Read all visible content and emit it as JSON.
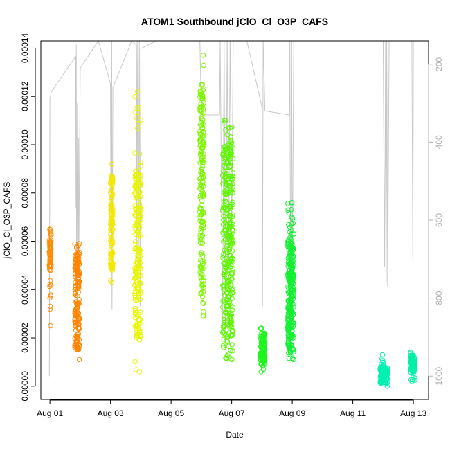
{
  "chart_data": {
    "type": "scatter",
    "title": "ATOM1 Southbound jClO_Cl_O3P_CAFS",
    "xlabel": "Date",
    "ylabel": "jClO_Cl_O3P_CAFS",
    "x_unit": "days (Aug 1 = 1)",
    "xlim": [
      0.7,
      13.5
    ],
    "ylim": [
      -5.5e-06,
      0.000143
    ],
    "y_ticks": [
      "0.00000",
      "0.00002",
      "0.00004",
      "0.00006",
      "0.00008",
      "0.00010",
      "0.00012",
      "0.00014"
    ],
    "y_tick_values": [
      0,
      2e-05,
      4e-05,
      6e-05,
      8e-05,
      0.0001,
      0.00012,
      0.00014
    ],
    "x_ticks": [
      "Aug 01",
      "Aug 03",
      "Aug 05",
      "Aug 07",
      "Aug 09",
      "Aug 11",
      "Aug 13"
    ],
    "x_tick_values": [
      1,
      3,
      5,
      7,
      9,
      11,
      13
    ],
    "right_axis": {
      "label": "",
      "range_top_to_bottom": [
        140,
        1060
      ],
      "ticks": [
        "200",
        "400",
        "600",
        "800",
        "1000"
      ],
      "tick_values": [
        200,
        400,
        600,
        800,
        1000
      ],
      "color": "#b0b0b0"
    },
    "pressure_trace": {
      "color": "#c8c8c8",
      "points": [
        [
          0.98,
          1000
        ],
        [
          1.0,
          290
        ],
        [
          1.05,
          270
        ],
        [
          1.85,
          180
        ],
        [
          1.86,
          570
        ],
        [
          1.87,
          150
        ],
        [
          1.88,
          780
        ],
        [
          1.9,
          470
        ],
        [
          1.91,
          300
        ],
        [
          1.92,
          760
        ],
        [
          1.93,
          600
        ],
        [
          1.94,
          390
        ],
        [
          1.95,
          720
        ],
        [
          2.0,
          210
        ],
        [
          2.6,
          140
        ],
        [
          3.0,
          250
        ],
        [
          3.02,
          790
        ],
        [
          3.04,
          140
        ],
        [
          3.05,
          830
        ],
        [
          3.08,
          260
        ],
        [
          3.7,
          140
        ],
        [
          3.85,
          150
        ],
        [
          3.86,
          700
        ],
        [
          3.88,
          140
        ],
        [
          3.92,
          760
        ],
        [
          3.95,
          140
        ],
        [
          3.98,
          820
        ],
        [
          4.0,
          160
        ],
        [
          4.5,
          140
        ],
        [
          5.0,
          140
        ],
        [
          5.95,
          140
        ],
        [
          6.0,
          330
        ],
        [
          6.6,
          330
        ],
        [
          6.62,
          140
        ],
        [
          6.7,
          880
        ],
        [
          6.75,
          140
        ],
        [
          6.8,
          900
        ],
        [
          6.85,
          140
        ],
        [
          6.9,
          700
        ],
        [
          6.95,
          140
        ],
        [
          7.0,
          660
        ],
        [
          7.05,
          140
        ],
        [
          7.5,
          140
        ],
        [
          8.0,
          310
        ],
        [
          8.02,
          820
        ],
        [
          8.04,
          140
        ],
        [
          8.1,
          320
        ],
        [
          8.9,
          330
        ],
        [
          8.92,
          140
        ],
        [
          8.95,
          860
        ],
        [
          8.98,
          140
        ],
        [
          9.0,
          780
        ],
        [
          9.05,
          140
        ],
        [
          10.0,
          140
        ],
        [
          11.0,
          140
        ],
        [
          12.0,
          140
        ],
        [
          12.05,
          720
        ],
        [
          12.08,
          140
        ],
        [
          12.1,
          760
        ],
        [
          12.12,
          140
        ],
        [
          12.15,
          770
        ],
        [
          12.2,
          140
        ],
        [
          12.8,
          140
        ],
        [
          12.95,
          140
        ],
        [
          12.98,
          700
        ],
        [
          13.0,
          140
        ]
      ]
    },
    "series": [
      {
        "color": "#ff8c00",
        "x_range": [
          0.98,
          1.04
        ],
        "y_min": 2.5e-05,
        "y_max": 6.5e-05,
        "y_dense": [
          4.8e-05,
          6.5e-05
        ],
        "n": 70
      },
      {
        "color": "#ff8400",
        "x_range": [
          1.82,
          1.98
        ],
        "y_min": 1.1e-05,
        "y_max": 5.9e-05,
        "y_dense": [
          1.5e-05,
          5.5e-05
        ],
        "n": 160
      },
      {
        "color": "#f5e800",
        "x_range": [
          3.0,
          3.08
        ],
        "y_min": 4.3e-05,
        "y_max": 9.2e-05,
        "y_dense": [
          4.8e-05,
          8.8e-05
        ],
        "n": 110
      },
      {
        "color": "#e8f500",
        "x_range": [
          3.8,
          4.0
        ],
        "y_min": 6e-06,
        "y_max": 0.000122,
        "y_dense": [
          2e-05,
          9e-05
        ],
        "n": 220
      },
      {
        "color": "#7df500",
        "x_range": [
          5.95,
          6.08
        ],
        "y_min": 2.9e-05,
        "y_max": 0.000137,
        "y_dense": [
          4e-05,
          0.000125
        ],
        "n": 180
      },
      {
        "color": "#5ef500",
        "x_range": [
          6.7,
          7.05
        ],
        "y_min": 1.1e-05,
        "y_max": 0.00011,
        "y_dense": [
          2e-05,
          0.0001
        ],
        "n": 320
      },
      {
        "color": "#1ef520",
        "x_range": [
          7.95,
          8.1
        ],
        "y_min": 6e-06,
        "y_max": 2.4e-05,
        "y_dense": [
          9e-06,
          2.2e-05
        ],
        "n": 120
      },
      {
        "color": "#10f030",
        "x_range": [
          8.85,
          9.05
        ],
        "y_min": 1.1e-05,
        "y_max": 7.6e-05,
        "y_dense": [
          1.5e-05,
          6e-05
        ],
        "n": 260
      },
      {
        "color": "#00f0b0",
        "x_range": [
          11.9,
          12.15
        ],
        "y_min": 0.0,
        "y_max": 1.3e-05,
        "y_dense": [
          1e-06,
          8e-06
        ],
        "n": 110
      },
      {
        "color": "#00f0a8",
        "x_range": [
          12.9,
          13.05
        ],
        "y_min": 2e-06,
        "y_max": 1.4e-05,
        "y_dense": [
          6e-06,
          1.3e-05
        ],
        "n": 90
      }
    ]
  }
}
